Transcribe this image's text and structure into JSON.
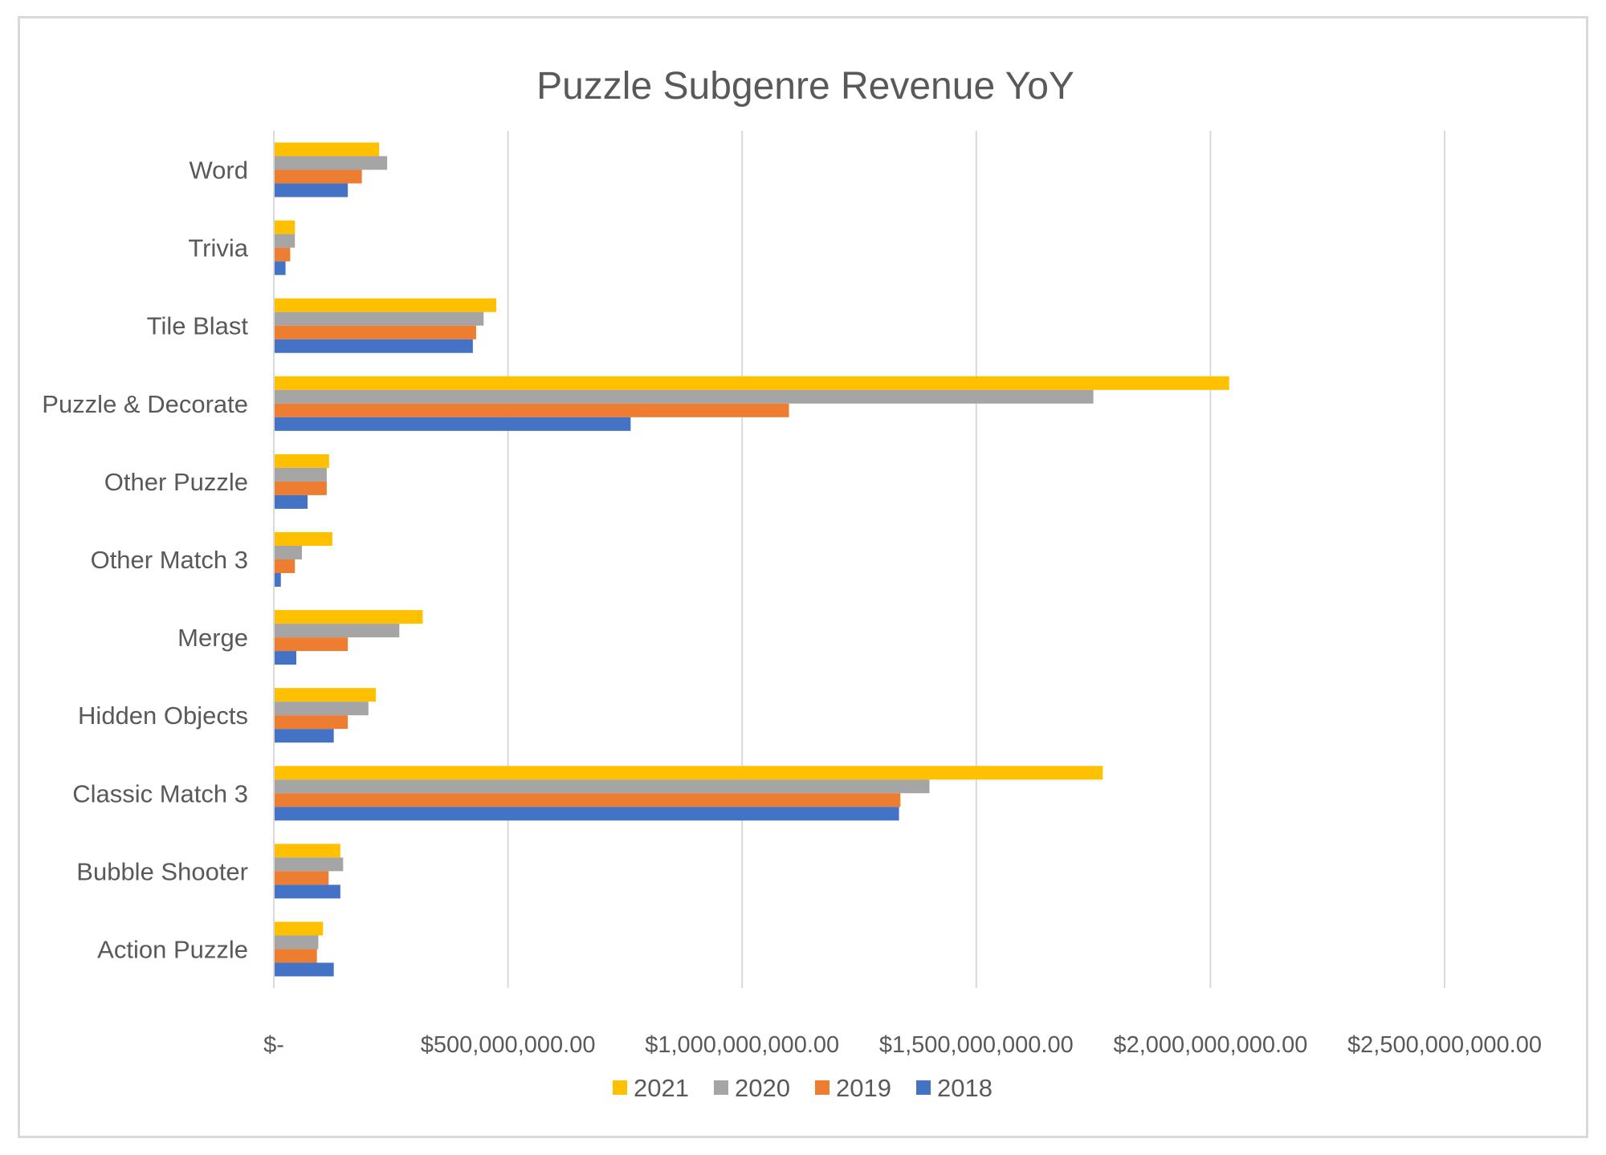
{
  "chart_data": {
    "type": "bar",
    "orientation": "horizontal",
    "title": "Puzzle Subgenre Revenue YoY",
    "categories": [
      "Word",
      "Trivia",
      "Tile Blast",
      "Puzzle & Decorate",
      "Other Puzzle",
      "Other Match 3",
      "Merge",
      "Hidden Objects",
      "Classic Match 3",
      "Bubble Shooter",
      "Action Puzzle"
    ],
    "series": [
      {
        "name": "2021",
        "color": "#ffc000",
        "values": [
          225000000,
          45000000,
          475000000,
          2040000000,
          118000000,
          125000000,
          318000000,
          218000000,
          1770000000,
          142000000,
          105000000
        ]
      },
      {
        "name": "2020",
        "color": "#a5a5a5",
        "values": [
          242000000,
          45000000,
          448000000,
          1750000000,
          113000000,
          60000000,
          268000000,
          202000000,
          1400000000,
          148000000,
          95000000
        ]
      },
      {
        "name": "2019",
        "color": "#ed7d31",
        "values": [
          188000000,
          35000000,
          432000000,
          1100000000,
          113000000,
          45000000,
          158000000,
          158000000,
          1338000000,
          117000000,
          92000000
        ]
      },
      {
        "name": "2018",
        "color": "#4472c4",
        "values": [
          158000000,
          25000000,
          425000000,
          762000000,
          72000000,
          15000000,
          48000000,
          128000000,
          1335000000,
          142000000,
          128000000
        ]
      }
    ],
    "x_ticks": [
      "$-",
      "$500,000,000.00",
      "$1,000,000,000.00",
      "$1,500,000,000.00",
      "$2,000,000,000.00",
      "$2,500,000,000.00"
    ],
    "xlim": [
      0,
      2500000000
    ],
    "grid": true,
    "legend_position": "bottom",
    "legend_order": [
      "2021",
      "2020",
      "2019",
      "2018"
    ]
  }
}
